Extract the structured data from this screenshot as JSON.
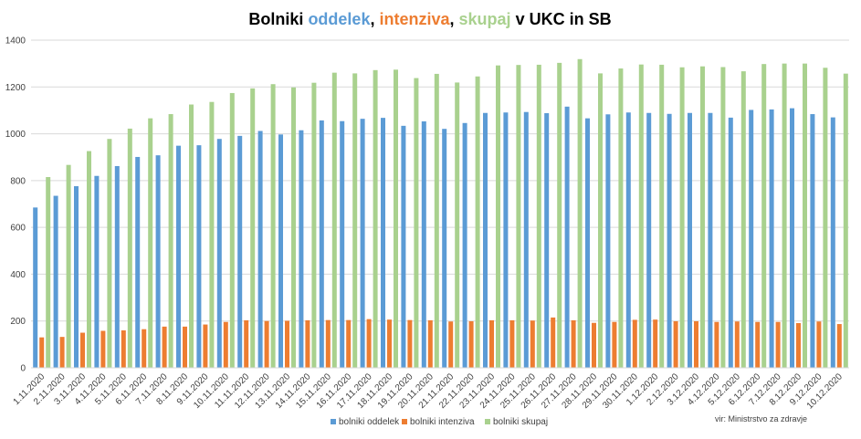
{
  "chart_data": {
    "type": "bar",
    "title": {
      "prefix": "Bolniki ",
      "part1": "oddelek",
      "sep1": ", ",
      "part2": "intenziva",
      "sep2": ", ",
      "part3": "skupaj",
      "suffix": " v UKC in SB"
    },
    "xlabel": "",
    "ylabel": "",
    "ylim": [
      0,
      1400
    ],
    "yticks": [
      0,
      200,
      400,
      600,
      800,
      1000,
      1200,
      1400
    ],
    "grid": true,
    "legend_position": "bottom",
    "categories": [
      "1.11.2020",
      "2.11.2020",
      "3.11.2020",
      "4.11.2020",
      "5.11.2020",
      "6.11.2020",
      "7.11.2020",
      "8.11.2020",
      "9.11.2020",
      "10.11.2020",
      "11.11.2020",
      "12.11.2020",
      "13.11.2020",
      "14.11.2020",
      "15.11.2020",
      "16.11.2020",
      "17.11.2020",
      "18.11.2020",
      "19.11.2020",
      "20.11.2020",
      "21.11.2020",
      "22.11.2020",
      "23.11.2020",
      "24.11.2020",
      "25.11.2020",
      "26.11.2020",
      "27.11.2020",
      "28.11.2020",
      "29.11.2020",
      "30.11.2020",
      "1.12.2020",
      "2.12.2020",
      "3.12.2020",
      "4.12.2020",
      "5.12.2020",
      "6.12.2020",
      "7.12.2020",
      "8.12.2020",
      "9.12.2020",
      "10.12.2020"
    ],
    "series": [
      {
        "name": "bolniki oddelek",
        "color": "#5b9bd5",
        "values": [
          685,
          735,
          776,
          820,
          862,
          901,
          908,
          949,
          951,
          978,
          991,
          1012,
          997,
          1015,
          1057,
          1054,
          1064,
          1068,
          1034,
          1053,
          1021,
          1046,
          1089,
          1091,
          1093,
          1088,
          1116,
          1066,
          1083,
          1091,
          1089,
          1085,
          1089,
          1089,
          1069,
          1102,
          1104,
          1109,
          1084,
          1070
        ]
      },
      {
        "name": "bolniki intenziva",
        "color": "#ed7d31",
        "values": [
          130,
          132,
          150,
          158,
          160,
          165,
          176,
          176,
          185,
          196,
          203,
          200,
          201,
          203,
          204,
          204,
          208,
          206,
          204,
          203,
          198,
          199,
          203,
          203,
          202,
          215,
          203,
          192,
          196,
          205,
          206,
          199,
          199,
          196,
          198,
          196,
          196,
          191,
          198,
          187
        ]
      },
      {
        "name": "bolniki skupaj",
        "color": "#a9d18e",
        "values": [
          815,
          867,
          926,
          978,
          1022,
          1066,
          1084,
          1125,
          1136,
          1174,
          1194,
          1212,
          1198,
          1218,
          1261,
          1258,
          1272,
          1274,
          1238,
          1256,
          1219,
          1245,
          1292,
          1294,
          1295,
          1303,
          1319,
          1258,
          1279,
          1296,
          1295,
          1284,
          1288,
          1285,
          1267,
          1298,
          1300,
          1300,
          1282,
          1257
        ]
      }
    ],
    "source_note": "vir: Ministrstvo za zdravje"
  }
}
